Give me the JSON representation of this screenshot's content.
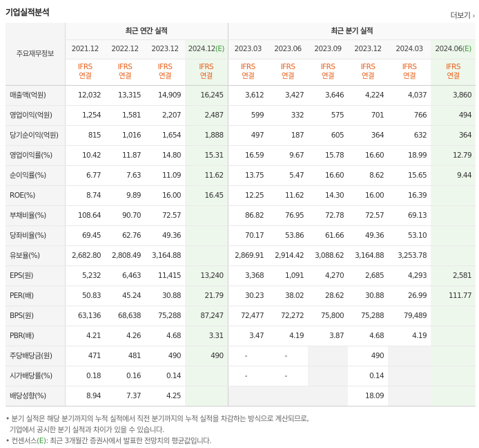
{
  "title": "기업실적분석",
  "more_label": "더보기",
  "corner_label": "주요재무정보",
  "groups": {
    "annual": "최근 연간 실적",
    "quarter": "최근 분기 실적"
  },
  "periods": [
    {
      "label": "2021.12",
      "est": false
    },
    {
      "label": "2022.12",
      "est": false
    },
    {
      "label": "2023.12",
      "est": false
    },
    {
      "label": "2024.12",
      "est": true
    },
    {
      "label": "2023.03",
      "est": false
    },
    {
      "label": "2023.06",
      "est": false
    },
    {
      "label": "2023.09",
      "est": false
    },
    {
      "label": "2023.12",
      "est": false
    },
    {
      "label": "2024.03",
      "est": false
    },
    {
      "label": "2024.06",
      "est": true
    }
  ],
  "est_mark": "(E)",
  "ifrs_line1": "IFRS",
  "ifrs_line2": "연결",
  "rows": [
    {
      "label": "매출액(억원)",
      "values": [
        "12,032",
        "13,315",
        "14,909",
        "16,245",
        "3,612",
        "3,427",
        "3,646",
        "4,224",
        "4,037",
        "3,860"
      ],
      "sec": false
    },
    {
      "label": "영업이익(억원)",
      "values": [
        "1,254",
        "1,581",
        "2,207",
        "2,487",
        "599",
        "332",
        "575",
        "701",
        "766",
        "494"
      ],
      "sec": false
    },
    {
      "label": "당기순이익(억원)",
      "values": [
        "815",
        "1,016",
        "1,654",
        "1,888",
        "497",
        "187",
        "605",
        "364",
        "632",
        "364"
      ],
      "sec": false
    },
    {
      "label": "영업이익률(%)",
      "values": [
        "10.42",
        "11.87",
        "14.80",
        "15.31",
        "16.59",
        "9.67",
        "15.78",
        "16.60",
        "18.99",
        "12.79"
      ],
      "sec": true
    },
    {
      "label": "순이익률(%)",
      "values": [
        "6.77",
        "7.63",
        "11.09",
        "11.62",
        "13.75",
        "5.47",
        "16.60",
        "8.62",
        "15.65",
        "9.44"
      ],
      "sec": false
    },
    {
      "label": "ROE(%)",
      "values": [
        "8.74",
        "9.89",
        "16.00",
        "16.45",
        "12.25",
        "11.62",
        "14.30",
        "16.00",
        "16.39",
        ""
      ],
      "sec": false
    },
    {
      "label": "부채비율(%)",
      "values": [
        "108.64",
        "90.70",
        "72.57",
        "",
        "86.82",
        "76.95",
        "72.78",
        "72.57",
        "69.13",
        ""
      ],
      "sec": true
    },
    {
      "label": "당좌비율(%)",
      "values": [
        "69.45",
        "62.76",
        "49.36",
        "",
        "70.17",
        "53.86",
        "61.66",
        "49.36",
        "53.10",
        ""
      ],
      "sec": false
    },
    {
      "label": "유보율(%)",
      "values": [
        "2,682.80",
        "2,808.49",
        "3,164.88",
        "",
        "2,869.91",
        "2,914.42",
        "3,088.62",
        "3,164.88",
        "3,253.78",
        ""
      ],
      "sec": false
    },
    {
      "label": "EPS(원)",
      "values": [
        "5,232",
        "6,463",
        "11,415",
        "13,240",
        "3,368",
        "1,091",
        "4,270",
        "2,685",
        "4,293",
        "2,581"
      ],
      "sec": true
    },
    {
      "label": "PER(배)",
      "values": [
        "50.83",
        "45.24",
        "30.88",
        "21.79",
        "30.23",
        "38.02",
        "28.62",
        "30.88",
        "26.99",
        "111.77"
      ],
      "sec": false
    },
    {
      "label": "BPS(원)",
      "values": [
        "63,136",
        "68,638",
        "75,288",
        "87,247",
        "72,477",
        "72,272",
        "75,800",
        "75,288",
        "79,489",
        ""
      ],
      "sec": false
    },
    {
      "label": "PBR(배)",
      "values": [
        "4.21",
        "4.26",
        "4.68",
        "3.31",
        "3.47",
        "4.19",
        "3.87",
        "4.68",
        "4.19",
        ""
      ],
      "sec": false
    },
    {
      "label": "주당배당금(원)",
      "values": [
        "471",
        "481",
        "490",
        "490",
        "-",
        "-",
        "",
        "490",
        "",
        ""
      ],
      "sec": true
    },
    {
      "label": "시가배당률(%)",
      "values": [
        "0.18",
        "0.16",
        "0.14",
        "",
        "-",
        "-",
        "",
        "0.14",
        "",
        ""
      ],
      "sec": false
    },
    {
      "label": "배당성향(%)",
      "values": [
        "8.94",
        "7.37",
        "4.25",
        "",
        "",
        "",
        "",
        "18.09",
        "",
        ""
      ],
      "sec": false
    }
  ],
  "notes": {
    "line1": "분기 실적은 해당 분기까지의 누적 실적에서 직전 분기까지의 누적 실적을 차감하는 방식으로 계산되므로,",
    "line2": "기업에서 공시한 분기 실적과 차이가 있을 수 있습니다.",
    "line3_pre": "컨센서스",
    "line3_mark": "(E)",
    "line3_post": ": 최근 3개월간 증권사에서 발표한 전망치의 평균값입니다."
  },
  "colors": {
    "ifrs": "#e8601a",
    "estimate_bg": "#eef7ec",
    "estimate_mark": "#3a9a3a"
  }
}
